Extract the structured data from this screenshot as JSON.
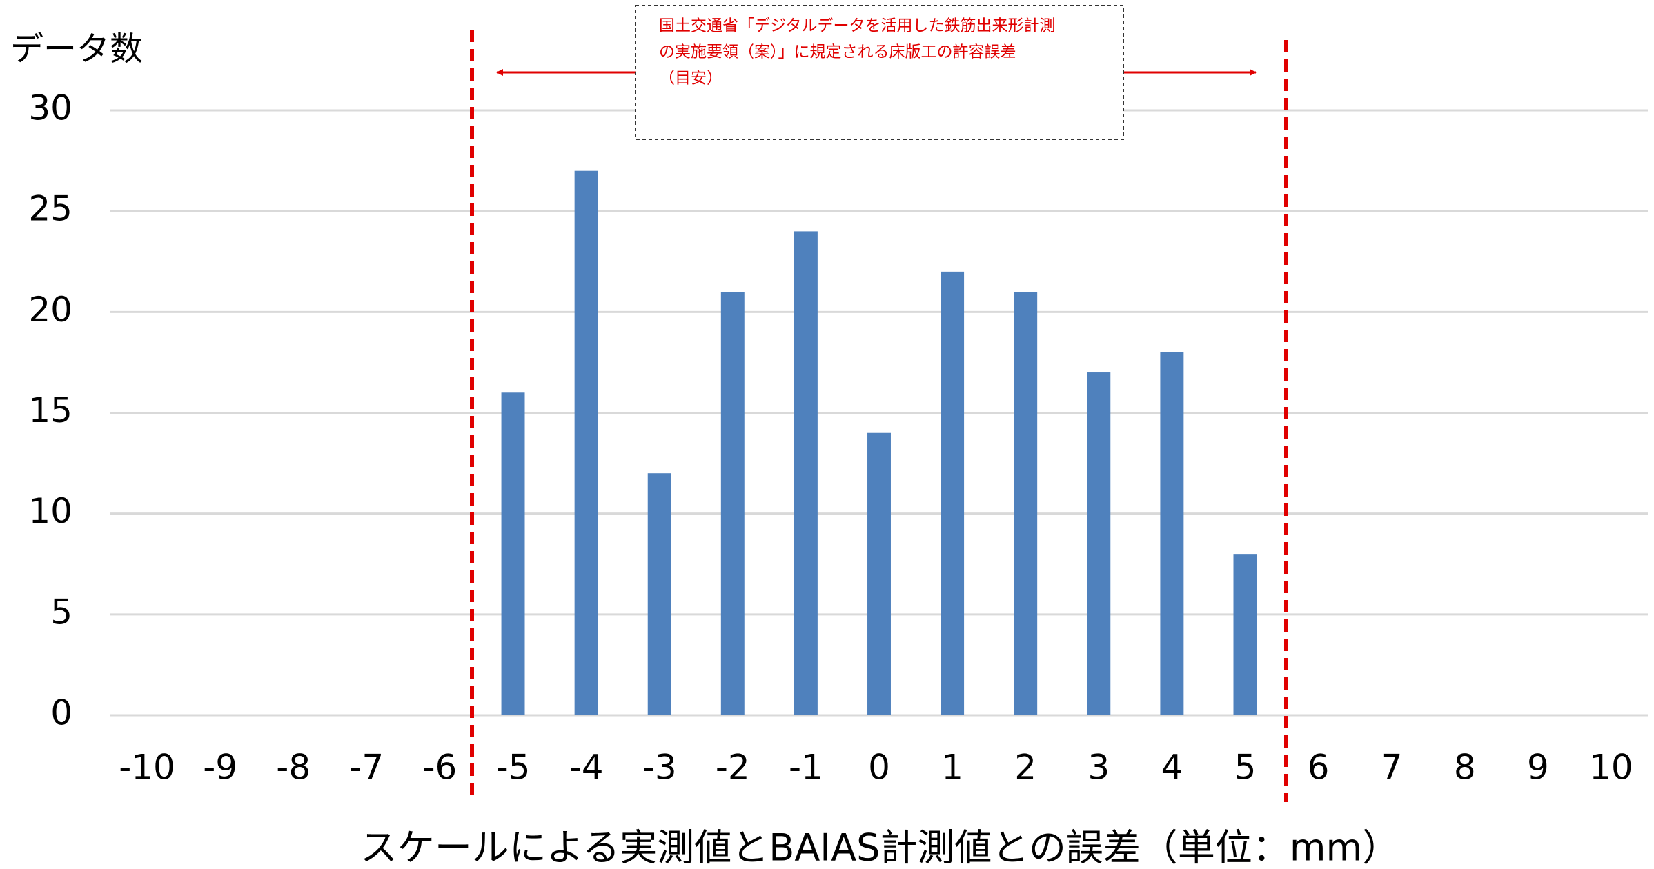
{
  "chart_data": {
    "type": "bar",
    "y_label": "データ数",
    "x_label": "スケールによる実測値とBAIAS計測値との誤差（単位：mm）",
    "annotation": [
      "国土交通省「デジタルデータを活用した鉄筋出来形計測",
      "の実施要領（案）」に規定される床版工の許容誤差",
      "（目安）"
    ],
    "categories": [
      "-10",
      "-9",
      "-8",
      "-7",
      "-6",
      "-5",
      "-4",
      "-3",
      "-2",
      "-1",
      "0",
      "1",
      "2",
      "3",
      "4",
      "5",
      "6",
      "7",
      "8",
      "9",
      "10"
    ],
    "values": [
      0,
      0,
      0,
      0,
      0,
      16,
      27,
      12,
      21,
      24,
      14,
      22,
      21,
      17,
      18,
      8,
      0,
      0,
      0,
      0,
      0
    ],
    "color": "#4f81bd",
    "ylim": [
      0,
      30
    ],
    "yticks": [
      0,
      5,
      10,
      15,
      20,
      25,
      30
    ],
    "grid": true
  }
}
